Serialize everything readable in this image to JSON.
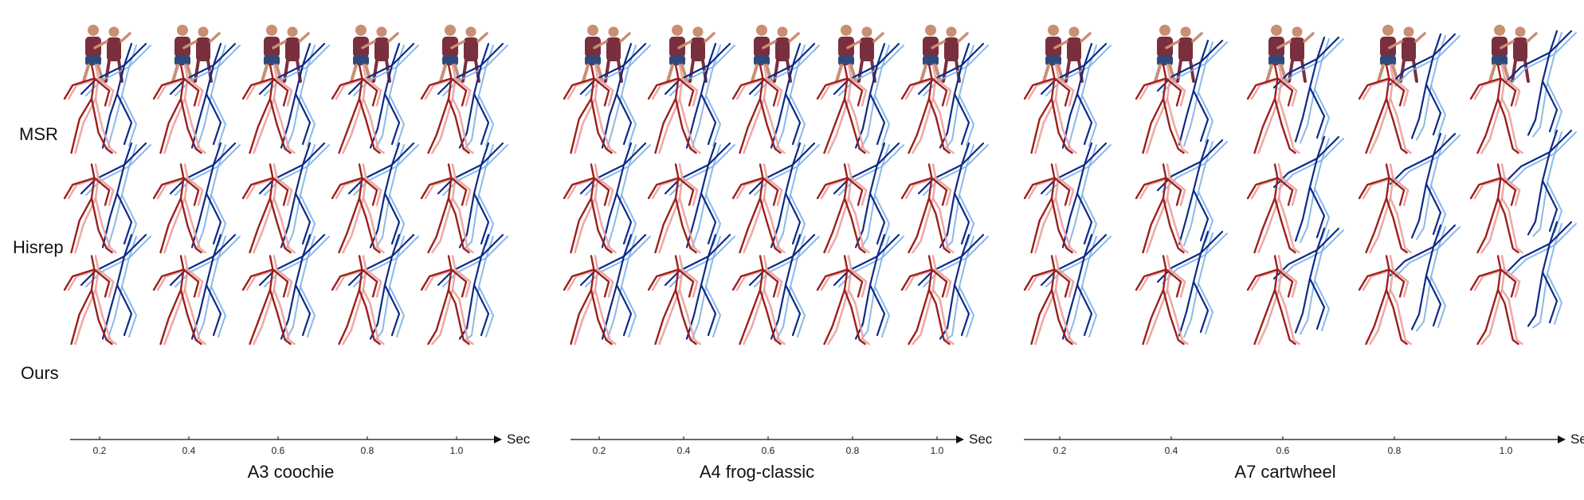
{
  "row_labels": [
    "MSR",
    "Hisrep",
    "Ours"
  ],
  "axis": {
    "unit": "Sec",
    "ticks": [
      "0.2",
      "0.4",
      "0.6",
      "0.8",
      "1.0"
    ]
  },
  "groups": [
    {
      "caption": "A3 coochie",
      "frames": 5
    },
    {
      "caption": "A4 frog-classic",
      "frames": 5
    },
    {
      "caption": "A7 cartwheel",
      "frames": 5
    }
  ],
  "colors": {
    "leader_dark": "#9e1f1a",
    "leader_light": "#e8a2a0",
    "follower_dark": "#0d2a8a",
    "follower_light": "#7fb3e3",
    "photo_shirt": "#7a2f3e",
    "photo_shorts": "#2f4a7a",
    "photo_skin": "#c98f73",
    "axis": "#111111"
  },
  "icons": {
    "axis_arrow": "arrow-right-icon"
  }
}
